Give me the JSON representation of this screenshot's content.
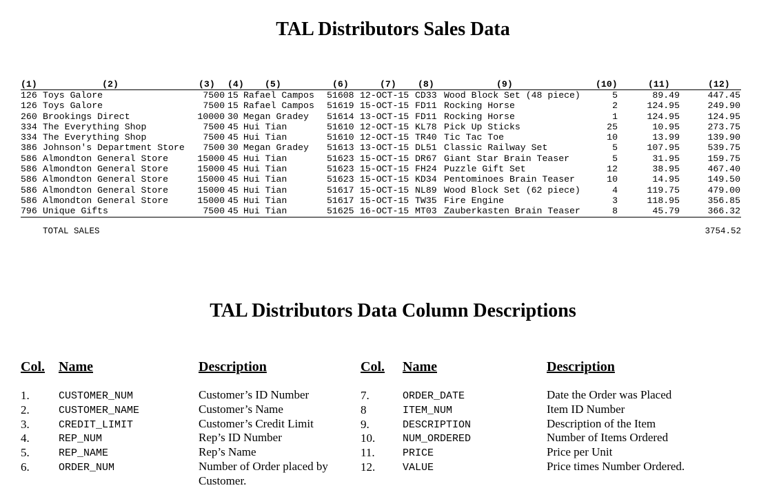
{
  "title": "TAL Distributors Sales Data",
  "columns": [
    "(1)",
    "(2)",
    "(3)",
    "(4)",
    "(5)",
    "(6)",
    "(7)",
    "(8)",
    "(9)",
    "(10)",
    "(11)",
    "(12)"
  ],
  "rows": [
    {
      "customer_num": "126",
      "customer_name": "Toys Galore",
      "credit_limit": "7500",
      "rep_num": "15",
      "rep_name": "Rafael Campos",
      "order_num": "51608",
      "order_date": "12-OCT-15",
      "item_num": "CD33",
      "description": "Wood Block Set (48 piece)",
      "num_ordered": "5",
      "price": "89.49",
      "value": "447.45"
    },
    {
      "customer_num": "126",
      "customer_name": "Toys Galore",
      "credit_limit": "7500",
      "rep_num": "15",
      "rep_name": "Rafael Campos",
      "order_num": "51619",
      "order_date": "15-OCT-15",
      "item_num": "FD11",
      "description": "Rocking Horse",
      "num_ordered": "2",
      "price": "124.95",
      "value": "249.90"
    },
    {
      "customer_num": "260",
      "customer_name": "Brookings Direct",
      "credit_limit": "10000",
      "rep_num": "30",
      "rep_name": "Megan Gradey",
      "order_num": "51614",
      "order_date": "13-OCT-15",
      "item_num": "FD11",
      "description": "Rocking Horse",
      "num_ordered": "1",
      "price": "124.95",
      "value": "124.95"
    },
    {
      "customer_num": "334",
      "customer_name": "The Everything Shop",
      "credit_limit": "7500",
      "rep_num": "45",
      "rep_name": "Hui Tian",
      "order_num": "51610",
      "order_date": "12-OCT-15",
      "item_num": "KL78",
      "description": "Pick Up Sticks",
      "num_ordered": "25",
      "price": "10.95",
      "value": "273.75"
    },
    {
      "customer_num": "334",
      "customer_name": "The Everything Shop",
      "credit_limit": "7500",
      "rep_num": "45",
      "rep_name": "Hui Tian",
      "order_num": "51610",
      "order_date": "12-OCT-15",
      "item_num": "TR40",
      "description": "Tic Tac Toe",
      "num_ordered": "10",
      "price": "13.99",
      "value": "139.90"
    },
    {
      "customer_num": "386",
      "customer_name": "Johnson's Department Store",
      "credit_limit": "7500",
      "rep_num": "30",
      "rep_name": "Megan Gradey",
      "order_num": "51613",
      "order_date": "13-OCT-15",
      "item_num": "DL51",
      "description": "Classic Railway Set",
      "num_ordered": "5",
      "price": "107.95",
      "value": "539.75"
    },
    {
      "customer_num": "586",
      "customer_name": "Almondton General Store",
      "credit_limit": "15000",
      "rep_num": "45",
      "rep_name": "Hui Tian",
      "order_num": "51623",
      "order_date": "15-OCT-15",
      "item_num": "DR67",
      "description": "Giant Star Brain Teaser",
      "num_ordered": "5",
      "price": "31.95",
      "value": "159.75"
    },
    {
      "customer_num": "586",
      "customer_name": "Almondton General Store",
      "credit_limit": "15000",
      "rep_num": "45",
      "rep_name": "Hui Tian",
      "order_num": "51623",
      "order_date": "15-OCT-15",
      "item_num": "FH24",
      "description": "Puzzle Gift Set",
      "num_ordered": "12",
      "price": "38.95",
      "value": "467.40"
    },
    {
      "customer_num": "586",
      "customer_name": "Almondton General Store",
      "credit_limit": "15000",
      "rep_num": "45",
      "rep_name": "Hui Tian",
      "order_num": "51623",
      "order_date": "15-OCT-15",
      "item_num": "KD34",
      "description": "Pentominoes Brain Teaser",
      "num_ordered": "10",
      "price": "14.95",
      "value": "149.50"
    },
    {
      "customer_num": "586",
      "customer_name": "Almondton General Store",
      "credit_limit": "15000",
      "rep_num": "45",
      "rep_name": "Hui Tian",
      "order_num": "51617",
      "order_date": "15-OCT-15",
      "item_num": "NL89",
      "description": "Wood Block Set (62 piece)",
      "num_ordered": "4",
      "price": "119.75",
      "value": "479.00"
    },
    {
      "customer_num": "586",
      "customer_name": "Almondton General Store",
      "credit_limit": "15000",
      "rep_num": "45",
      "rep_name": "Hui Tian",
      "order_num": "51617",
      "order_date": "15-OCT-15",
      "item_num": "TW35",
      "description": "Fire Engine",
      "num_ordered": "3",
      "price": "118.95",
      "value": "356.85"
    },
    {
      "customer_num": "796",
      "customer_name": "Unique Gifts",
      "credit_limit": "7500",
      "rep_num": "45",
      "rep_name": "Hui Tian",
      "order_num": "51625",
      "order_date": "16-OCT-15",
      "item_num": "MT03",
      "description": "Zauberkasten Brain Teaser",
      "num_ordered": "8",
      "price": "45.79",
      "value": "366.32"
    }
  ],
  "total": {
    "label": "TOTAL SALES",
    "value": "3754.52"
  },
  "descriptions": {
    "title": "TAL Distributors Data Column Descriptions",
    "headers": {
      "col": "Col.",
      "name": "Name",
      "description": "Description"
    },
    "left": [
      {
        "col": "1.",
        "name": "CUSTOMER_NUM",
        "description": "Customer’s  ID Number"
      },
      {
        "col": "2.",
        "name": "CUSTOMER_NAME",
        "description": "Customer’s  Name"
      },
      {
        "col": "3.",
        "name": "CREDIT_LIMIT",
        "description": "Customer’s  Credit Limit"
      },
      {
        "col": "4.",
        "name": "REP_NUM",
        "description": "Rep’s ID Number"
      },
      {
        "col": "5.",
        "name": "REP_NAME",
        "description": "Rep’s Name"
      },
      {
        "col": "6.",
        "name": "ORDER_NUM",
        "description": "Number of Order placed by Customer."
      }
    ],
    "right": [
      {
        "col": "7.",
        "name": "ORDER_DATE",
        "description": "Date the Order was Placed"
      },
      {
        "col": "8",
        "name": "ITEM_NUM",
        "description": "Item ID Number"
      },
      {
        "col": "9.",
        "name": "DESCRIPTION",
        "description": "Description of the Item"
      },
      {
        "col": "10.",
        "name": "NUM_ORDERED",
        "description": "Number of Items Ordered"
      },
      {
        "col": "11.",
        "name": "PRICE",
        "description": "Price per Unit"
      },
      {
        "col": "12.",
        "name": "VALUE",
        "description": "Price times Number Ordered."
      }
    ]
  }
}
